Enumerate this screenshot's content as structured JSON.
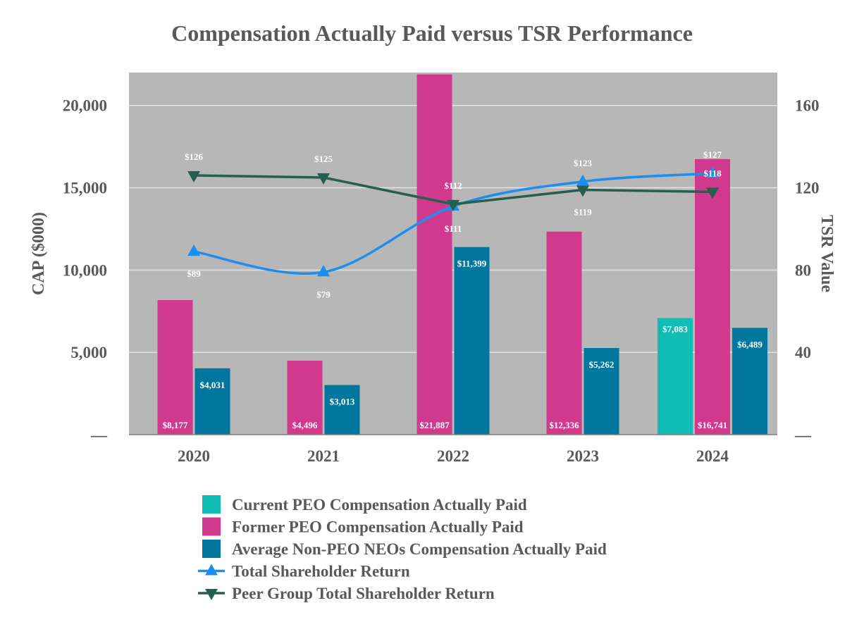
{
  "chart_data": {
    "type": "bar",
    "title": "Compensation Actually Paid versus TSR Performance",
    "categories": [
      "2020",
      "2021",
      "2022",
      "2023",
      "2024"
    ],
    "ylabel": "CAP ($000)",
    "y2label": "TSR Value",
    "ylim": [
      0,
      22000
    ],
    "y2lim": [
      0,
      176
    ],
    "yticks": [
      {
        "value": 0,
        "label": "—"
      },
      {
        "value": 5000,
        "label": "5,000"
      },
      {
        "value": 10000,
        "label": "10,000"
      },
      {
        "value": 15000,
        "label": "15,000"
      },
      {
        "value": 20000,
        "label": "20,000"
      }
    ],
    "y2ticks": [
      {
        "value": 0,
        "label": "—"
      },
      {
        "value": 40,
        "label": "40"
      },
      {
        "value": 80,
        "label": "80"
      },
      {
        "value": 120,
        "label": "120"
      },
      {
        "value": 160,
        "label": "160"
      }
    ],
    "grid": true,
    "plot_background": "#b7b7b7",
    "bar_series": [
      {
        "name": "Current PEO Compensation Actually Paid",
        "color": "#10bcb4",
        "values": [
          null,
          null,
          null,
          null,
          7083
        ],
        "labels": [
          "",
          "",
          "",
          "",
          "$7,083"
        ]
      },
      {
        "name": "Former PEO Compensation Actually Paid",
        "color": "#d1398f",
        "values": [
          8177,
          4496,
          21887,
          12336,
          16741
        ],
        "labels": [
          "$8,177",
          "$4,496",
          "$21,887",
          "$12,336",
          "$16,741"
        ]
      },
      {
        "name": "Average Non-PEO NEOs Compensation Actually Paid",
        "color": "#00779e",
        "values": [
          4031,
          3013,
          11399,
          5262,
          6489
        ],
        "labels": [
          "$4,031",
          "$3,013",
          "$11,399",
          "$5,262",
          "$6,489"
        ]
      }
    ],
    "line_series": [
      {
        "name": "Total Shareholder Return",
        "color": "#1b8ef0",
        "marker": "triangle-up",
        "axis": "right",
        "values": [
          89,
          79,
          111,
          123,
          127
        ],
        "labels": [
          "$89",
          "$79",
          "$111",
          "$123",
          "$127"
        ]
      },
      {
        "name": "Peer Group Total Shareholder Return",
        "color": "#285e4f",
        "marker": "triangle-down",
        "axis": "right",
        "values": [
          126,
          125,
          112,
          119,
          118
        ],
        "labels": [
          "$126",
          "$125",
          "$112",
          "$119",
          "$118"
        ]
      }
    ],
    "legend": [
      {
        "label": "Current PEO Compensation Actually Paid",
        "kind": "bar",
        "color": "#10bcb4"
      },
      {
        "label": "Former PEO Compensation Actually Paid",
        "kind": "bar",
        "color": "#d1398f"
      },
      {
        "label": "Average Non-PEO NEOs Compensation Actually Paid",
        "kind": "bar",
        "color": "#00779e"
      },
      {
        "label": "Total Shareholder Return",
        "kind": "line-up",
        "color": "#1b8ef0"
      },
      {
        "label": "Peer Group Total Shareholder Return",
        "kind": "line-down",
        "color": "#285e4f"
      }
    ],
    "legend_position": "bottom"
  }
}
